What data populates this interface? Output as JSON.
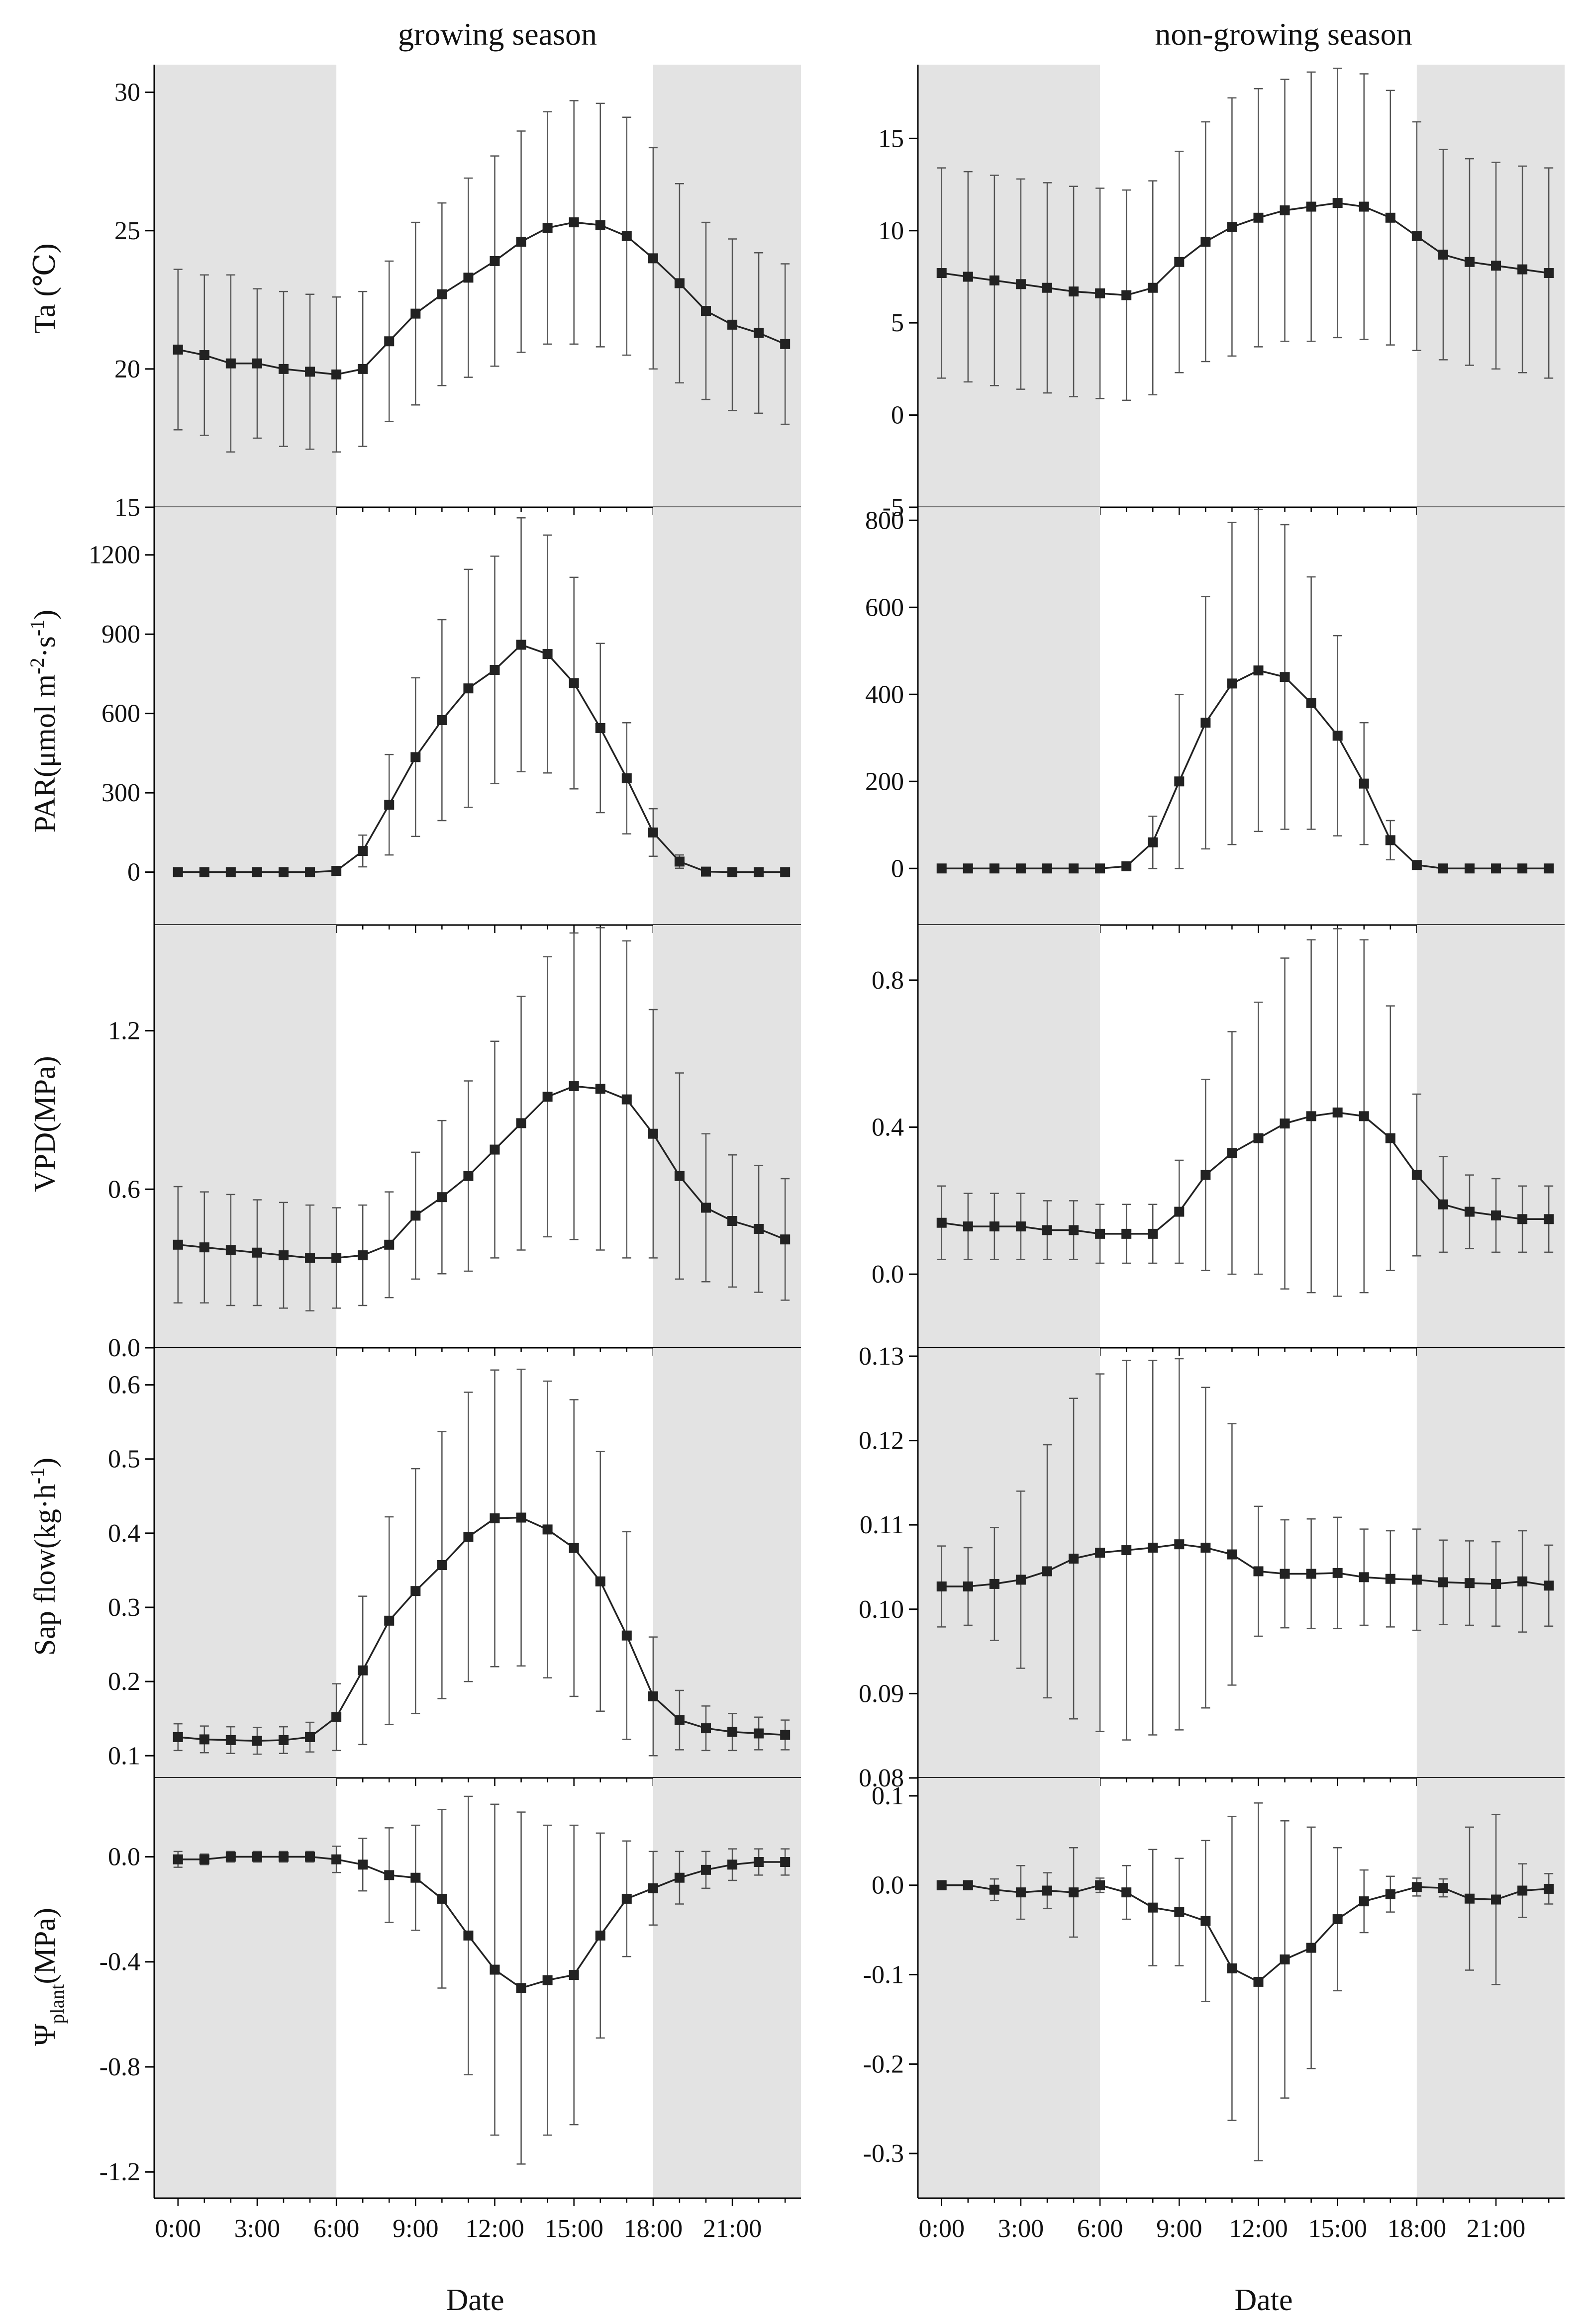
{
  "columns": [
    "growing season",
    "non-growing season"
  ],
  "x_axis": {
    "label": "Date",
    "ticks": [
      "0:00",
      "3:00",
      "6:00",
      "9:00",
      "12:00",
      "15:00",
      "18:00",
      "21:00"
    ],
    "hours": [
      0,
      3,
      6,
      9,
      12,
      15,
      18,
      21
    ]
  },
  "colors": {
    "night_shade": "#e3e3e3",
    "line": "#222222",
    "errorbar": "#555555"
  },
  "chart_data": [
    {
      "type": "line",
      "panel": "Ta growing season",
      "column": "growing season",
      "ylabel": "Ta (℃)",
      "xlabel": "Date",
      "ylim": [
        15,
        31
      ],
      "yticks": [
        15,
        20,
        25,
        30
      ],
      "ytick_labels": [
        "15",
        "20",
        "25",
        "30"
      ],
      "shaded_hours": [
        [
          0,
          6
        ],
        [
          18,
          23.5
        ]
      ],
      "x": [
        0,
        1,
        2,
        3,
        4,
        5,
        6,
        7,
        8,
        9,
        10,
        11,
        12,
        13,
        14,
        15,
        16,
        17,
        18,
        19,
        20,
        21,
        22,
        23
      ],
      "values": [
        20.7,
        20.5,
        20.2,
        20.2,
        20.0,
        19.9,
        19.8,
        20.0,
        21.0,
        22.0,
        22.7,
        23.3,
        23.9,
        24.6,
        25.1,
        25.3,
        25.2,
        24.8,
        24.0,
        23.1,
        22.1,
        21.6,
        21.3,
        20.9
      ],
      "errors": [
        2.9,
        2.9,
        3.2,
        2.7,
        2.8,
        2.8,
        2.8,
        2.8,
        2.9,
        3.3,
        3.3,
        3.6,
        3.8,
        4.0,
        4.2,
        4.4,
        4.4,
        4.3,
        4.0,
        3.6,
        3.2,
        3.1,
        2.9,
        2.9
      ]
    },
    {
      "type": "line",
      "panel": "Ta non-growing season",
      "column": "non-growing season",
      "ylabel": "",
      "xlabel": "Date",
      "ylim": [
        -5,
        19
      ],
      "yticks": [
        -5,
        0,
        5,
        10,
        15
      ],
      "ytick_labels": [
        "-5",
        "0",
        "5",
        "10",
        "15"
      ],
      "shaded_hours": [
        [
          0,
          6
        ],
        [
          18,
          23.5
        ]
      ],
      "x": [
        0,
        1,
        2,
        3,
        4,
        5,
        6,
        7,
        8,
        9,
        10,
        11,
        12,
        13,
        14,
        15,
        16,
        17,
        18,
        19,
        20,
        21,
        22,
        23
      ],
      "values": [
        7.7,
        7.5,
        7.3,
        7.1,
        6.9,
        6.7,
        6.6,
        6.5,
        6.9,
        8.3,
        9.4,
        10.2,
        10.7,
        11.1,
        11.3,
        11.5,
        11.3,
        10.7,
        9.7,
        8.7,
        8.3,
        8.1,
        7.9,
        7.7
      ],
      "errors": [
        5.7,
        5.7,
        5.7,
        5.7,
        5.7,
        5.7,
        5.7,
        5.7,
        5.8,
        6.0,
        6.5,
        7.0,
        7.0,
        7.1,
        7.3,
        7.3,
        7.2,
        6.9,
        6.2,
        5.7,
        5.6,
        5.6,
        5.6,
        5.7
      ]
    },
    {
      "type": "line",
      "panel": "PAR growing season",
      "column": "growing season",
      "ylabel": "PAR(μmol m-2·s-1)",
      "ylabel_main": "PAR(μmol m",
      "ylabel_sup1": "-2",
      "ylabel_mid": "·s",
      "ylabel_sup2": "-1",
      "ylabel_end": ")",
      "xlabel": "Date",
      "ylim": [
        -200,
        1380
      ],
      "yticks": [
        0,
        300,
        600,
        900,
        1200
      ],
      "ytick_labels": [
        "0",
        "300",
        "600",
        "900",
        "1200"
      ],
      "shaded_hours": [
        [
          0,
          6
        ],
        [
          18,
          23.5
        ]
      ],
      "x": [
        0,
        1,
        2,
        3,
        4,
        5,
        6,
        7,
        8,
        9,
        10,
        11,
        12,
        13,
        14,
        15,
        16,
        17,
        18,
        19,
        20,
        21,
        22,
        23
      ],
      "values": [
        0,
        0,
        0,
        0,
        0,
        0,
        5,
        80,
        255,
        435,
        575,
        695,
        765,
        860,
        825,
        715,
        545,
        355,
        150,
        40,
        2,
        0,
        0,
        0
      ],
      "errors": [
        0,
        0,
        0,
        0,
        0,
        0,
        10,
        60,
        190,
        300,
        380,
        450,
        430,
        480,
        450,
        400,
        320,
        210,
        90,
        25,
        0,
        0,
        0,
        0
      ]
    },
    {
      "type": "line",
      "panel": "PAR non-growing season",
      "column": "non-growing season",
      "ylabel": "",
      "xlabel": "Date",
      "ylim": [
        -130,
        830
      ],
      "yticks": [
        0,
        200,
        400,
        600,
        800
      ],
      "ytick_labels": [
        "0",
        "200",
        "400",
        "600",
        "800"
      ],
      "shaded_hours": [
        [
          0,
          6
        ],
        [
          18,
          23.5
        ]
      ],
      "x": [
        0,
        1,
        2,
        3,
        4,
        5,
        6,
        7,
        8,
        9,
        10,
        11,
        12,
        13,
        14,
        15,
        16,
        17,
        18,
        19,
        20,
        21,
        22,
        23
      ],
      "values": [
        0,
        0,
        0,
        0,
        0,
        0,
        0,
        5,
        60,
        200,
        335,
        425,
        455,
        440,
        380,
        305,
        195,
        65,
        8,
        0,
        0,
        0,
        0,
        0
      ],
      "errors": [
        0,
        0,
        0,
        0,
        0,
        0,
        0,
        5,
        60,
        200,
        290,
        370,
        370,
        350,
        290,
        230,
        140,
        45,
        5,
        0,
        0,
        0,
        0,
        0
      ]
    },
    {
      "type": "line",
      "panel": "VPD growing season",
      "column": "growing season",
      "ylabel": "VPD(MPa)",
      "xlabel": "Date",
      "ylim": [
        0,
        1.6
      ],
      "yticks": [
        0,
        0.6,
        1.2
      ],
      "ytick_labels": [
        "0.0",
        "0.6",
        "1.2"
      ],
      "shaded_hours": [
        [
          0,
          6
        ],
        [
          18,
          23.5
        ]
      ],
      "x": [
        0,
        1,
        2,
        3,
        4,
        5,
        6,
        7,
        8,
        9,
        10,
        11,
        12,
        13,
        14,
        15,
        16,
        17,
        18,
        19,
        20,
        21,
        22,
        23
      ],
      "values": [
        0.39,
        0.38,
        0.37,
        0.36,
        0.35,
        0.34,
        0.34,
        0.35,
        0.39,
        0.5,
        0.57,
        0.65,
        0.75,
        0.85,
        0.95,
        0.99,
        0.98,
        0.94,
        0.81,
        0.65,
        0.53,
        0.48,
        0.45,
        0.41
      ],
      "errors": [
        0.22,
        0.21,
        0.21,
        0.2,
        0.2,
        0.2,
        0.19,
        0.19,
        0.2,
        0.24,
        0.29,
        0.36,
        0.41,
        0.48,
        0.53,
        0.58,
        0.61,
        0.6,
        0.47,
        0.39,
        0.28,
        0.25,
        0.24,
        0.23
      ]
    },
    {
      "type": "line",
      "panel": "VPD non-growing season",
      "column": "non-growing season",
      "ylabel": "",
      "xlabel": "Date",
      "ylim": [
        -0.2,
        0.95
      ],
      "yticks": [
        0,
        0.4,
        0.8
      ],
      "ytick_labels": [
        "0.0",
        "0.4",
        "0.8"
      ],
      "shaded_hours": [
        [
          0,
          6
        ],
        [
          18,
          23.5
        ]
      ],
      "x": [
        0,
        1,
        2,
        3,
        4,
        5,
        6,
        7,
        8,
        9,
        10,
        11,
        12,
        13,
        14,
        15,
        16,
        17,
        18,
        19,
        20,
        21,
        22,
        23
      ],
      "values": [
        0.14,
        0.13,
        0.13,
        0.13,
        0.12,
        0.12,
        0.11,
        0.11,
        0.11,
        0.17,
        0.27,
        0.33,
        0.37,
        0.41,
        0.43,
        0.44,
        0.43,
        0.37,
        0.27,
        0.19,
        0.17,
        0.16,
        0.15,
        0.15
      ],
      "errors": [
        0.1,
        0.09,
        0.09,
        0.09,
        0.08,
        0.08,
        0.08,
        0.08,
        0.08,
        0.14,
        0.26,
        0.33,
        0.37,
        0.45,
        0.48,
        0.5,
        0.48,
        0.36,
        0.22,
        0.13,
        0.1,
        0.1,
        0.09,
        0.09
      ]
    },
    {
      "type": "line",
      "panel": "Sap flow growing season",
      "column": "growing season",
      "ylabel": "Sap flow(kg·h-1)",
      "ylabel_main": "Sap flow(kg·h",
      "ylabel_sup1": "-1",
      "ylabel_end": ")",
      "xlabel": "Date",
      "ylim": [
        0.07,
        0.65
      ],
      "yticks": [
        0.1,
        0.2,
        0.3,
        0.4,
        0.5,
        0.6
      ],
      "ytick_labels": [
        "0.1",
        "0.2",
        "0.3",
        "0.4",
        "0.5",
        "0.6"
      ],
      "shaded_hours": [
        [
          0,
          6
        ],
        [
          18,
          23.5
        ]
      ],
      "x": [
        0,
        1,
        2,
        3,
        4,
        5,
        6,
        7,
        8,
        9,
        10,
        11,
        12,
        13,
        14,
        15,
        16,
        17,
        18,
        19,
        20,
        21,
        22,
        23
      ],
      "values": [
        0.125,
        0.122,
        0.121,
        0.12,
        0.121,
        0.125,
        0.152,
        0.215,
        0.282,
        0.322,
        0.357,
        0.395,
        0.42,
        0.421,
        0.405,
        0.38,
        0.335,
        0.262,
        0.18,
        0.148,
        0.137,
        0.132,
        0.13,
        0.128
      ],
      "errors": [
        0.018,
        0.018,
        0.018,
        0.018,
        0.018,
        0.02,
        0.045,
        0.1,
        0.14,
        0.165,
        0.18,
        0.195,
        0.2,
        0.2,
        0.2,
        0.2,
        0.175,
        0.14,
        0.08,
        0.04,
        0.03,
        0.025,
        0.022,
        0.02
      ]
    },
    {
      "type": "line",
      "panel": "Sap flow non-growing season",
      "column": "non-growing season",
      "ylabel": "",
      "xlabel": "Date",
      "ylim": [
        0.08,
        0.131
      ],
      "yticks": [
        0.08,
        0.09,
        0.1,
        0.11,
        0.12,
        0.13
      ],
      "ytick_labels": [
        "0.08",
        "0.09",
        "0.10",
        "0.11",
        "0.12",
        "0.13"
      ],
      "shaded_hours": [
        [
          0,
          6
        ],
        [
          18,
          23.5
        ]
      ],
      "x": [
        0,
        1,
        2,
        3,
        4,
        5,
        6,
        7,
        8,
        9,
        10,
        11,
        12,
        13,
        14,
        15,
        16,
        17,
        18,
        19,
        20,
        21,
        22,
        23
      ],
      "values": [
        0.1027,
        0.1027,
        0.103,
        0.1035,
        0.1045,
        0.106,
        0.1067,
        0.107,
        0.1073,
        0.1077,
        0.1073,
        0.1065,
        0.1045,
        0.1042,
        0.1042,
        0.1043,
        0.1038,
        0.1036,
        0.1035,
        0.1032,
        0.1031,
        0.103,
        0.1033,
        0.1028
      ],
      "errors": [
        0.0048,
        0.0046,
        0.0067,
        0.0105,
        0.015,
        0.019,
        0.0212,
        0.0225,
        0.0222,
        0.022,
        0.019,
        0.0155,
        0.0077,
        0.0064,
        0.0065,
        0.0066,
        0.0057,
        0.0057,
        0.006,
        0.005,
        0.005,
        0.005,
        0.006,
        0.0048
      ]
    },
    {
      "type": "line",
      "panel": "Ψplant growing season",
      "column": "growing season",
      "ylabel": "Ψplant(MPa)",
      "ylabel_main": "Ψ",
      "ylabel_sub": "plant",
      "ylabel_end": "(MPa)",
      "xlabel": "Date",
      "ylim": [
        -1.3,
        0.3
      ],
      "yticks": [
        -1.2,
        -0.8,
        -0.4,
        0.0
      ],
      "ytick_labels": [
        "-1.2",
        "-0.8",
        "-0.4",
        "0.0"
      ],
      "shaded_hours": [
        [
          0,
          6
        ],
        [
          18,
          23.5
        ]
      ],
      "x": [
        0,
        1,
        2,
        3,
        4,
        5,
        6,
        7,
        8,
        9,
        10,
        11,
        12,
        13,
        14,
        15,
        16,
        17,
        18,
        19,
        20,
        21,
        22,
        23
      ],
      "values": [
        -0.01,
        -0.01,
        0.0,
        0.0,
        0.0,
        0.0,
        -0.01,
        -0.03,
        -0.07,
        -0.08,
        -0.16,
        -0.3,
        -0.43,
        -0.5,
        -0.47,
        -0.45,
        -0.3,
        -0.16,
        -0.12,
        -0.08,
        -0.05,
        -0.03,
        -0.02,
        -0.02
      ],
      "errors": [
        0.03,
        0.02,
        0.02,
        0.02,
        0.02,
        0.02,
        0.05,
        0.1,
        0.18,
        0.2,
        0.34,
        0.53,
        0.63,
        0.67,
        0.59,
        0.57,
        0.39,
        0.22,
        0.14,
        0.1,
        0.07,
        0.06,
        0.05,
        0.05
      ]
    },
    {
      "type": "line",
      "panel": "Ψplant non-growing season",
      "column": "non-growing season",
      "ylabel": "",
      "xlabel": "Date",
      "ylim": [
        -0.35,
        0.12
      ],
      "yticks": [
        -0.3,
        -0.2,
        -0.1,
        0.0,
        0.1
      ],
      "ytick_labels": [
        "-0.3",
        "-0.2",
        "-0.1",
        "0.0",
        "0.1"
      ],
      "shaded_hours": [
        [
          0,
          6
        ],
        [
          18,
          23.5
        ]
      ],
      "x": [
        0,
        1,
        2,
        3,
        4,
        5,
        6,
        7,
        8,
        9,
        10,
        11,
        12,
        13,
        14,
        15,
        16,
        17,
        18,
        19,
        20,
        21,
        22,
        23
      ],
      "values": [
        0.0,
        0.0,
        -0.005,
        -0.008,
        -0.006,
        -0.008,
        0.0,
        -0.008,
        -0.025,
        -0.03,
        -0.04,
        -0.093,
        -0.108,
        -0.083,
        -0.07,
        -0.038,
        -0.018,
        -0.01,
        -0.002,
        -0.003,
        -0.015,
        -0.016,
        -0.006,
        -0.004
      ],
      "errors": [
        0.005,
        0.005,
        0.012,
        0.03,
        0.02,
        0.05,
        0.008,
        0.03,
        0.065,
        0.06,
        0.09,
        0.17,
        0.2,
        0.155,
        0.135,
        0.08,
        0.035,
        0.02,
        0.01,
        0.01,
        0.08,
        0.095,
        0.03,
        0.017
      ]
    }
  ]
}
